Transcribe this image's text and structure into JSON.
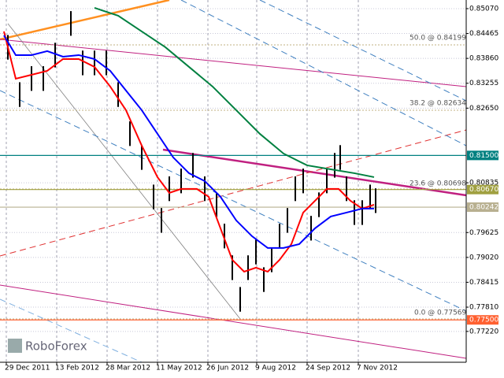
{
  "chart_data": {
    "type": "ohlc",
    "xlim": [
      0,
      148
    ],
    "ylim": [
      0.7647,
      0.8528
    ],
    "xticks": [
      {
        "value": 2,
        "label": "29 Dec 2011"
      },
      {
        "value": 18,
        "label": "13 Feb 2012"
      },
      {
        "value": 34,
        "label": "28 Mar 2012"
      },
      {
        "value": 50,
        "label": "11 May 2012"
      },
      {
        "value": 66,
        "label": "26 Jun 2012"
      },
      {
        "value": 81.5,
        "label": "9 Aug 2012"
      },
      {
        "value": 97.5,
        "label": "24 Sep 2012"
      },
      {
        "value": 113.75,
        "label": "7 Nov 2012"
      }
    ],
    "yticks": [
      {
        "value": 0.8507,
        "label": "0.85070"
      },
      {
        "value": 0.84465,
        "label": "0.84465"
      },
      {
        "value": 0.8386,
        "label": "0.83860"
      },
      {
        "value": 0.83255,
        "label": "0.83255"
      },
      {
        "value": 0.8265,
        "label": "0.82650"
      },
      {
        "value": 0.80835,
        "label": "0.80835"
      },
      {
        "value": 0.79625,
        "label": "0.79625"
      },
      {
        "value": 0.7902,
        "label": "0.79020"
      },
      {
        "value": 0.78415,
        "label": "0.78415"
      },
      {
        "value": 0.7781,
        "label": "0.77810"
      },
      {
        "value": 0.7722,
        "label": "0.77220"
      }
    ],
    "grid": true,
    "bar_color": "#000000",
    "x": [
      2.5,
      6.25,
      10,
      13.75,
      17.5,
      22.5,
      26.25,
      30,
      33.75,
      37.5,
      41.25,
      45,
      48.75,
      51.25,
      53.75,
      57.5,
      61.25,
      65,
      68.75,
      71.25,
      73.75,
      76.25,
      78.75,
      81.25,
      83.75,
      86.25,
      88.75,
      91.25,
      93.75,
      96.25,
      98.75,
      101.25,
      103.75,
      106.25,
      108,
      110,
      112.5,
      115,
      117.5,
      119.25
    ],
    "high": [
      0.8443,
      0.8328,
      0.8367,
      0.8367,
      0.8424,
      0.8501,
      0.8405,
      0.8405,
      0.8405,
      0.8328,
      0.8233,
      0.8175,
      0.8079,
      0.8022,
      0.8099,
      0.8118,
      0.8156,
      0.8099,
      0.806,
      0.7984,
      0.7907,
      0.783,
      0.7907,
      0.7945,
      0.7878,
      0.7926,
      0.7984,
      0.8022,
      0.8099,
      0.8118,
      0.8003,
      0.806,
      0.8118,
      0.8156,
      0.8175,
      0.8099,
      0.8041,
      0.8041,
      0.8079,
      0.807
    ],
    "low": [
      0.8383,
      0.8268,
      0.8307,
      0.8307,
      0.8364,
      0.8441,
      0.8345,
      0.8345,
      0.8345,
      0.8268,
      0.8173,
      0.8115,
      0.8019,
      0.7962,
      0.8039,
      0.8058,
      0.8096,
      0.8039,
      0.8,
      0.7924,
      0.7847,
      0.777,
      0.7847,
      0.7885,
      0.7818,
      0.7866,
      0.7924,
      0.7962,
      0.8039,
      0.8058,
      0.7943,
      0.8,
      0.8058,
      0.8096,
      0.8115,
      0.8039,
      0.7981,
      0.7981,
      0.8019,
      0.801
    ],
    "series": [
      {
        "color": "#ff0000",
        "x": [
          1.25,
          5,
          10,
          15,
          20,
          25,
          30,
          35,
          40,
          45,
          50,
          53.75,
          57.5,
          62.5,
          66.25,
          70,
          73.75,
          77.5,
          81.25,
          85,
          88.75,
          92.5,
          96.25,
          100,
          103.75,
          107.5,
          111.25,
          115,
          118.75
        ],
        "values": [
          0.84515,
          0.83366,
          0.83461,
          0.83557,
          0.83844,
          0.83844,
          0.83653,
          0.83174,
          0.826,
          0.81738,
          0.80972,
          0.80589,
          0.80685,
          0.80685,
          0.80493,
          0.79727,
          0.78961,
          0.78674,
          0.7877,
          0.78674,
          0.78961,
          0.79344,
          0.8011,
          0.80397,
          0.80685,
          0.80685,
          0.80397,
          0.80206,
          0.80302
        ]
      },
      {
        "color": "#0000ff",
        "x": [
          1.25,
          5,
          10,
          15,
          20,
          25,
          30,
          35,
          40,
          45,
          50,
          55,
          60,
          65,
          70,
          75,
          80,
          85,
          90,
          95,
          100,
          105,
          110,
          115,
          118.75
        ],
        "values": [
          0.84419,
          0.8394,
          0.8394,
          0.84036,
          0.83902,
          0.8394,
          0.83844,
          0.83557,
          0.83078,
          0.826,
          0.82025,
          0.81451,
          0.81068,
          0.80876,
          0.80493,
          0.79919,
          0.79536,
          0.79249,
          0.79249,
          0.79344,
          0.79727,
          0.80014,
          0.8011,
          0.80206,
          0.80206
        ]
      },
      {
        "color": "#008040",
        "x": [
          30,
          37.5,
          45,
          52.5,
          60,
          67.5,
          75,
          82.5,
          90,
          97.5,
          105,
          112.5,
          118.75
        ],
        "values": [
          0.85089,
          0.84898,
          0.84515,
          0.84132,
          0.83653,
          0.83174,
          0.826,
          0.82025,
          0.81546,
          0.81259,
          0.81163,
          0.81068,
          0.80972
        ]
      }
    ],
    "levels": [
      {
        "value": 0.815,
        "label": "0.81500",
        "color": "#008080"
      },
      {
        "value": 0.8067,
        "label": "0.80670",
        "color": "#a0a040"
      },
      {
        "value": 0.80242,
        "label": "0.80242",
        "color": "#b8b090"
      },
      {
        "value": 0.775,
        "label": "0.77500",
        "color": "#ff6030"
      }
    ],
    "annotations": [
      "50.0 @ 0.84199",
      "38.2 @ 0.82634",
      "23.6 @ 0.80698",
      "0.0 @ 0.77569"
    ],
    "logo": "RoboForex"
  }
}
